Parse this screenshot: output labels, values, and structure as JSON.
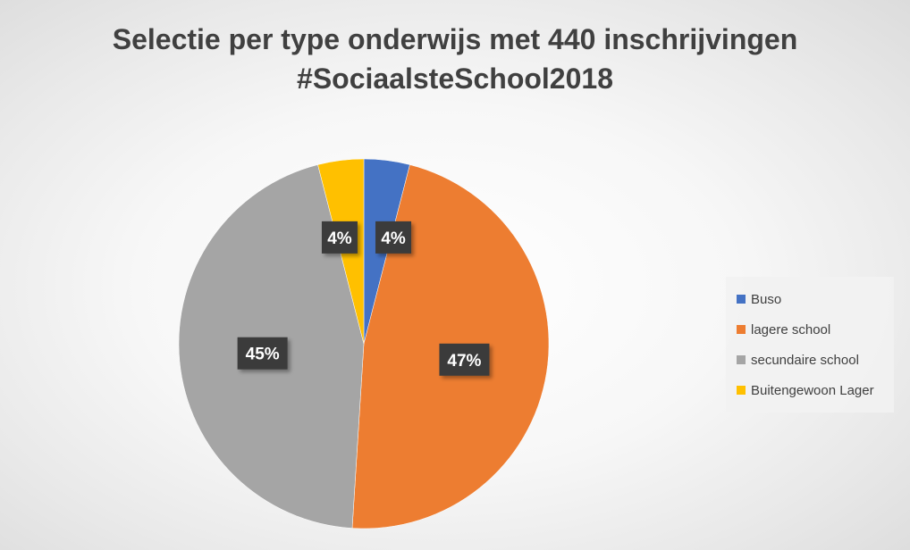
{
  "chart_data": {
    "type": "pie",
    "title": "Selectie per type onderwijs met 440 inschrijvingen",
    "subtitle": "#SociaalsteSchool2018",
    "categories": [
      "Buso",
      "lagere school",
      "secundaire school",
      "Buitengewoon Lager"
    ],
    "values": [
      4,
      47,
      45,
      4
    ],
    "labels": [
      "4%",
      "47%",
      "45%",
      "4%"
    ],
    "colors": [
      "#4472C4",
      "#ED7D31",
      "#A5A5A5",
      "#FFC000"
    ],
    "legend": "right"
  }
}
